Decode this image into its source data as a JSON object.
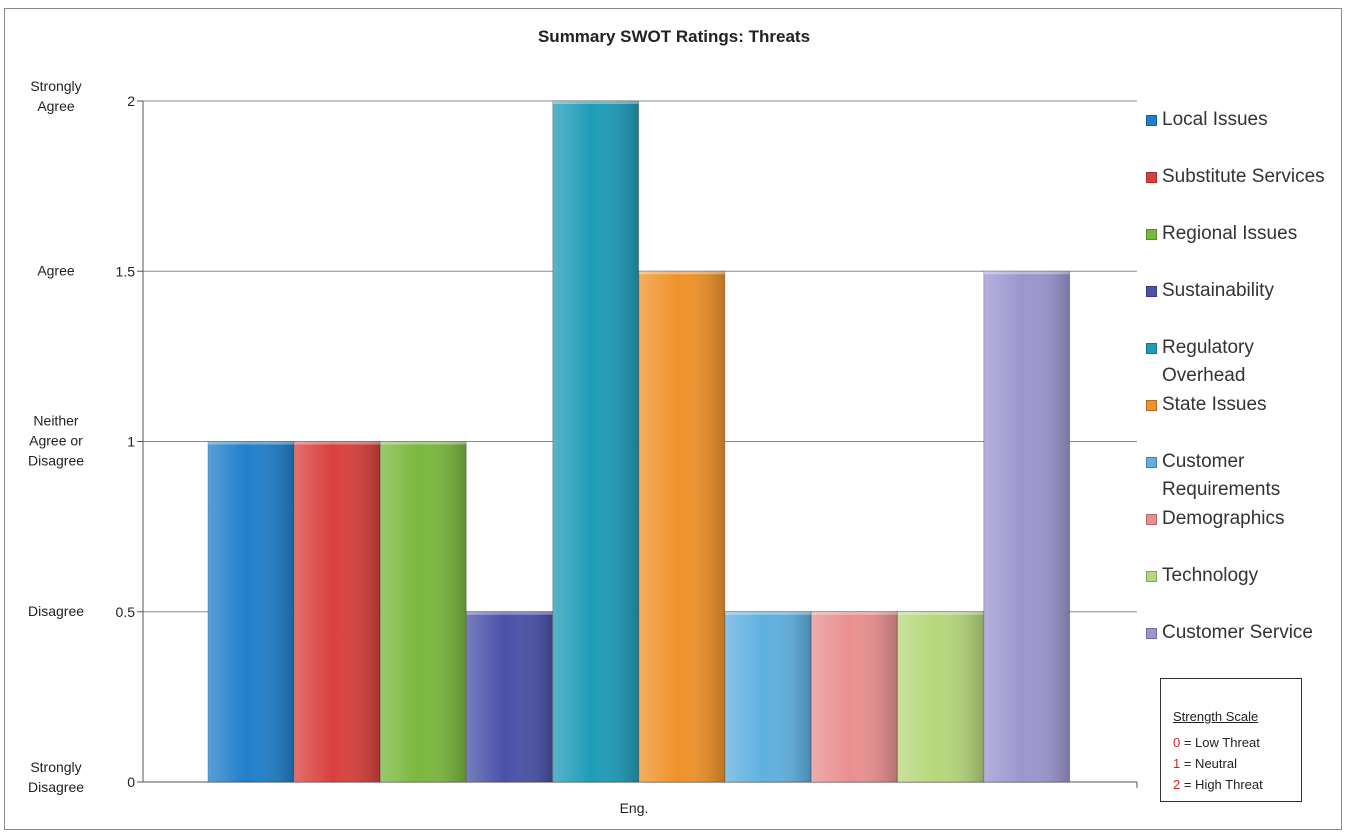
{
  "chart_data": {
    "type": "bar",
    "title": "Summary SWOT Ratings: Threats",
    "categories": [
      "Eng."
    ],
    "series": [
      {
        "name": "Local Issues",
        "values": [
          1.0
        ],
        "color": "#1f7fc9"
      },
      {
        "name": "Substitute Services",
        "values": [
          1.0
        ],
        "color": "#d9403d"
      },
      {
        "name": "Regional Issues",
        "values": [
          1.0
        ],
        "color": "#7ab73e"
      },
      {
        "name": "Sustainability",
        "values": [
          0.5
        ],
        "color": "#4a51a8"
      },
      {
        "name": "Regulatory Overhead",
        "values": [
          2.0
        ],
        "color": "#1f9cb8"
      },
      {
        "name": "State Issues",
        "values": [
          1.5
        ],
        "color": "#f0922a"
      },
      {
        "name": "Customer Requirements",
        "values": [
          0.5
        ],
        "color": "#5fb0e0"
      },
      {
        "name": "Demographics",
        "values": [
          0.5
        ],
        "color": "#ea8f8f"
      },
      {
        "name": "Technology",
        "values": [
          0.5
        ],
        "color": "#b6d77b"
      },
      {
        "name": "Customer Service",
        "values": [
          1.5
        ],
        "color": "#9c96cf"
      }
    ],
    "ylim": [
      0,
      2
    ],
    "yticks": [
      "0",
      "0.5",
      "1",
      "1.5",
      "2"
    ],
    "ytick_text_labels": [
      {
        "value": 0,
        "lines": [
          "Strongly",
          "Disagree"
        ]
      },
      {
        "value": 0.5,
        "lines": [
          "Disagree"
        ]
      },
      {
        "value": 1,
        "lines": [
          "Neither",
          "Agree or",
          "Disagree"
        ]
      },
      {
        "value": 1.5,
        "lines": [
          "Agree"
        ]
      },
      {
        "value": 2,
        "lines": [
          "Strongly",
          "Agree"
        ]
      }
    ],
    "grid": true,
    "legend_position": "right"
  },
  "scale_box": {
    "title": "Strength Scale",
    "rows": [
      {
        "num": "0",
        "text": " = Low Threat"
      },
      {
        "num": "1",
        "text": " = Neutral"
      },
      {
        "num": "2",
        "text": " = High Threat"
      }
    ]
  }
}
